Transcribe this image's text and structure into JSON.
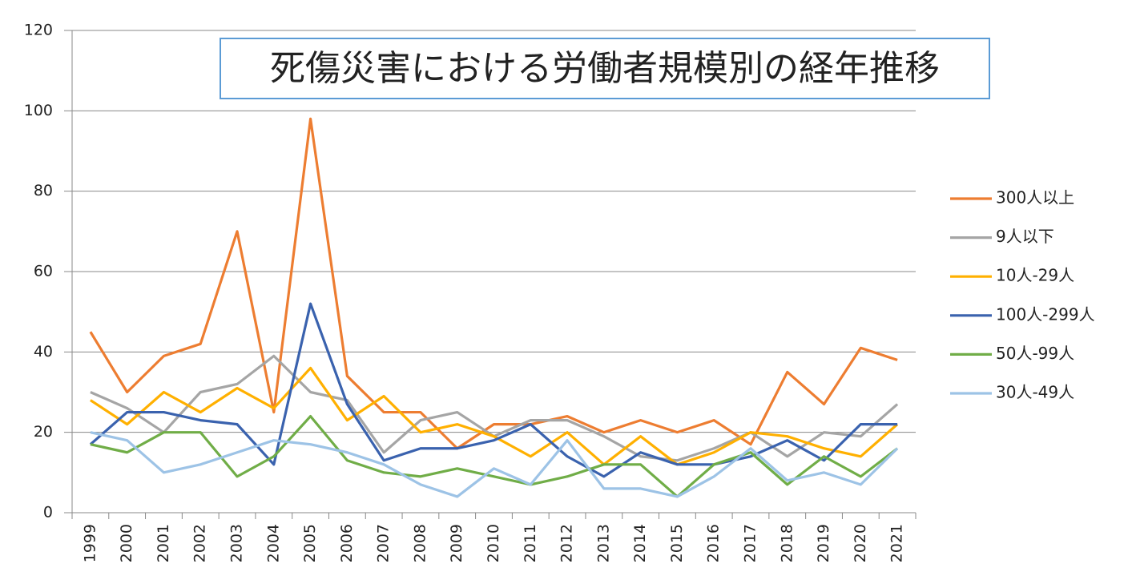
{
  "chart_data": {
    "type": "line",
    "title": "死傷災害における労働者規模別の経年推移",
    "categories": [
      "1999",
      "2000",
      "2001",
      "2002",
      "2003",
      "2004",
      "2005",
      "2006",
      "2007",
      "2008",
      "2009",
      "2010",
      "2011",
      "2012",
      "2013",
      "2014",
      "2015",
      "2016",
      "2017",
      "2018",
      "2019",
      "2020",
      "2021"
    ],
    "series": [
      {
        "name": "300人以上",
        "color": "#ED7D31",
        "values": [
          45,
          30,
          39,
          42,
          70,
          25,
          98,
          34,
          25,
          25,
          16,
          22,
          22,
          24,
          20,
          23,
          20,
          23,
          17,
          35,
          27,
          41,
          38
        ]
      },
      {
        "name": "9人以下",
        "color": "#A5A5A5",
        "values": [
          30,
          26,
          20,
          30,
          32,
          39,
          30,
          28,
          15,
          23,
          25,
          19,
          23,
          23,
          19,
          14,
          13,
          16,
          20,
          14,
          20,
          19,
          27
        ]
      },
      {
        "name": "10人-29人",
        "color": "#FFB000",
        "values": [
          28,
          22,
          30,
          25,
          31,
          26,
          36,
          23,
          29,
          20,
          22,
          19,
          14,
          20,
          12,
          19,
          12,
          15,
          20,
          19,
          16,
          14,
          22
        ]
      },
      {
        "name": "100人-299人",
        "color": "#3A62AE",
        "values": [
          17,
          25,
          25,
          23,
          22,
          12,
          52,
          27,
          13,
          16,
          16,
          18,
          22,
          14,
          9,
          15,
          12,
          12,
          14,
          18,
          13,
          22,
          22
        ]
      },
      {
        "name": "50人-99人",
        "color": "#70AD47",
        "values": [
          17,
          15,
          20,
          20,
          9,
          14,
          24,
          13,
          10,
          9,
          11,
          9,
          7,
          9,
          12,
          12,
          4,
          12,
          15,
          7,
          14,
          9,
          16
        ]
      },
      {
        "name": "30人-49人",
        "color": "#9DC3E6",
        "values": [
          20,
          18,
          10,
          12,
          15,
          18,
          17,
          15,
          12,
          7,
          4,
          11,
          7,
          18,
          6,
          6,
          4,
          9,
          16,
          8,
          10,
          7,
          16
        ]
      }
    ],
    "ylim": [
      0,
      120
    ],
    "yticks": [
      0,
      20,
      40,
      60,
      80,
      100,
      120
    ],
    "grid": true,
    "legend": "right"
  }
}
